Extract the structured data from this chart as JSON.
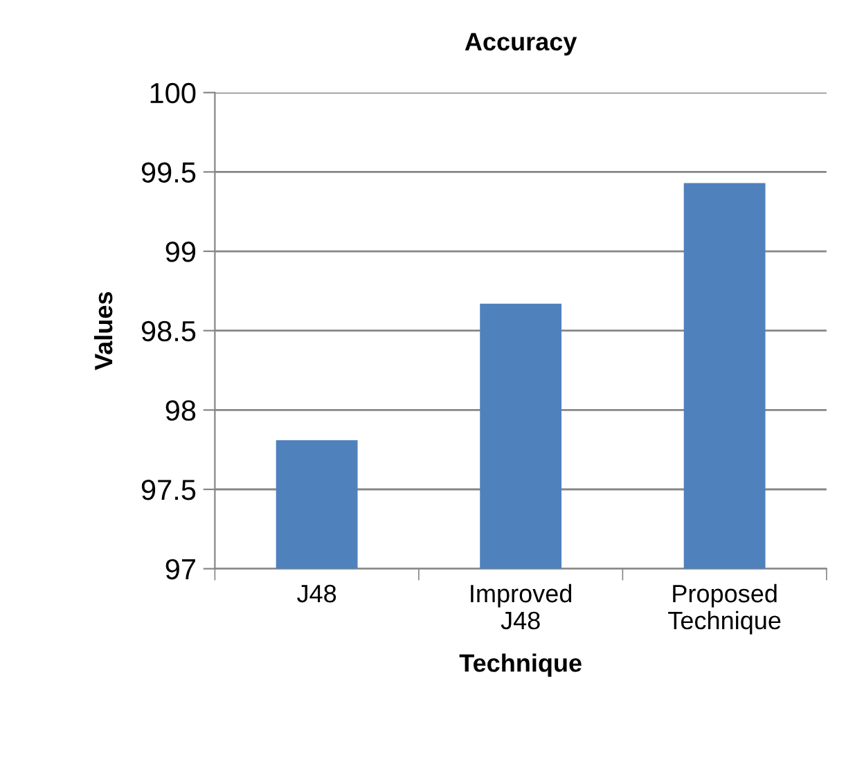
{
  "chart_data": {
    "type": "bar",
    "title": "Accuracy",
    "xlabel": "Technique",
    "ylabel": "Values",
    "categories": [
      "J48",
      "Improved\nJ48",
      "Proposed\nTechnique"
    ],
    "values": [
      97.81,
      98.67,
      99.43
    ],
    "color": "#4f81bd",
    "ylim": [
      97,
      100
    ],
    "yticks": [
      97,
      97.5,
      98,
      98.5,
      99,
      99.5,
      100
    ],
    "grid": "y"
  }
}
